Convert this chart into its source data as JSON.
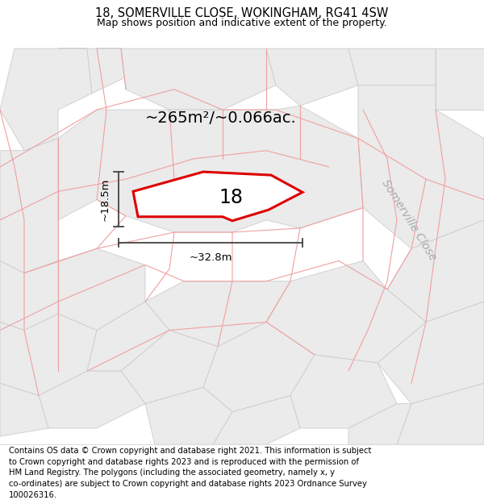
{
  "title": "18, SOMERVILLE CLOSE, WOKINGHAM, RG41 4SW",
  "subtitle": "Map shows position and indicative extent of the property.",
  "footer_line1": "Contains OS data © Crown copyright and database right 2021. This information is subject",
  "footer_line2": "to Crown copyright and database rights 2023 and is reproduced with the permission of",
  "footer_line3": "HM Land Registry. The polygons (including the associated geometry, namely x, y",
  "footer_line4": "co-ordinates) are subject to Crown copyright and database rights 2023 Ordnance Survey",
  "footer_line5": "100026316.",
  "map_bg_color": "#ffffff",
  "parcel_fill_color": "#ebebeb",
  "parcel_edge_color": "#cccccc",
  "boundary_color": "#f0a0a0",
  "plot_outline_color": "#dd0000",
  "plot_fill_color": "#ffffff",
  "plot_label": "18",
  "area_text": "~265m²/~0.066ac.",
  "dim_h_text": "~18.5m",
  "dim_w_text": "~32.8m",
  "street_label": "Somerville Close",
  "dim_color": "#444444",
  "street_label_color": "#aaaaaa",
  "title_fontsize": 10.5,
  "subtitle_fontsize": 9,
  "footer_fontsize": 7.2,
  "plot_label_fontsize": 17,
  "area_fontsize": 14,
  "dim_fontsize": 9.5,
  "street_label_fontsize": 10
}
